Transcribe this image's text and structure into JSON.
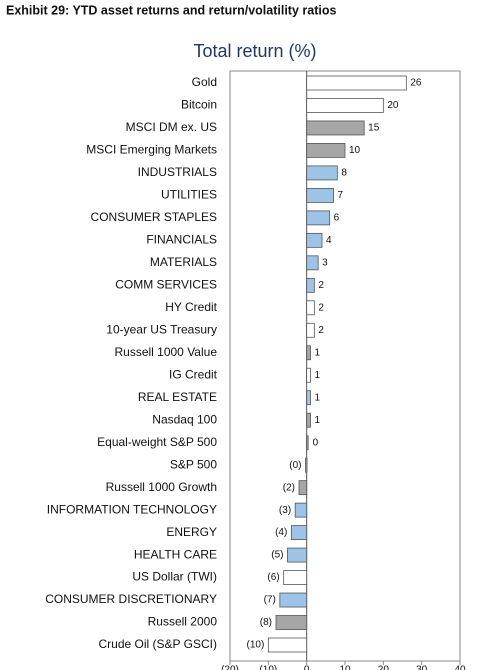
{
  "header": "Exhibit 29: YTD asset returns and return/volatility ratios",
  "chart_data": {
    "type": "bar",
    "orientation": "horizontal",
    "title": "Total return (%)",
    "categories": [
      "Gold",
      "Bitcoin",
      "MSCI DM ex. US",
      "MSCI Emerging Markets",
      "INDUSTRIALS",
      "UTILITIES",
      "CONSUMER STAPLES",
      "FINANCIALS",
      "MATERIALS",
      "COMM SERVICES",
      "HY Credit",
      "10-year US Treasury",
      "Russell 1000 Value",
      "IG Credit",
      "REAL ESTATE",
      "Nasdaq 100",
      "Equal-weight S&P 500",
      "S&P 500",
      "Russell 1000 Growth",
      "INFORMATION TECHNOLOGY",
      "ENERGY",
      "HEALTH CARE",
      "US Dollar (TWI)",
      "CONSUMER DISCRETIONARY",
      "Russell 2000",
      "Crude Oil (S&P GSCI)"
    ],
    "values": [
      26,
      20,
      15,
      10,
      8,
      7,
      6,
      4,
      3,
      2,
      2,
      2,
      1,
      1,
      1,
      1,
      0.3,
      -0.3,
      -2,
      -3,
      -4,
      -5,
      -6,
      -7,
      -8,
      -10
    ],
    "value_labels": [
      "26",
      "20",
      "15",
      "10",
      "8",
      "7",
      "6",
      "4",
      "3",
      "2",
      "2",
      "2",
      "1",
      "1",
      "1",
      "1",
      "0",
      "(0)",
      "(2)",
      "(3)",
      "(4)",
      "(5)",
      "(6)",
      "(7)",
      "(8)",
      "(10)"
    ],
    "colors": [
      "#ffffff",
      "#ffffff",
      "#a6a6a6",
      "#a6a6a6",
      "#9dc3e6",
      "#9dc3e6",
      "#9dc3e6",
      "#9dc3e6",
      "#9dc3e6",
      "#9dc3e6",
      "#ffffff",
      "#ffffff",
      "#a6a6a6",
      "#ffffff",
      "#9dc3e6",
      "#a6a6a6",
      "#a6a6a6",
      "#a6a6a6",
      "#a6a6a6",
      "#9dc3e6",
      "#9dc3e6",
      "#9dc3e6",
      "#ffffff",
      "#9dc3e6",
      "#a6a6a6",
      "#ffffff"
    ],
    "xlim": [
      -20,
      40
    ],
    "xticks": [
      {
        "value": -20,
        "label": "(20)"
      },
      {
        "value": -10,
        "label": "(10)"
      },
      0,
      10,
      20,
      30,
      40
    ]
  }
}
